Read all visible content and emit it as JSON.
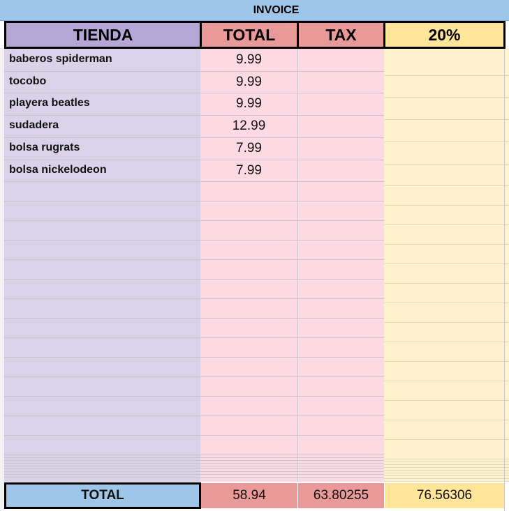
{
  "table": {
    "title": "INVOICE",
    "headers": [
      "TIENDA",
      "TOTAL",
      "TAX",
      "20%"
    ],
    "rows": [
      [
        "baberos spiderman",
        "9.99"
      ],
      [
        "tocobo",
        "9.99"
      ],
      [
        "playera beatles",
        "9.99"
      ],
      [
        "sudadera",
        "12.99"
      ],
      [
        "bolsa rugrats",
        "7.99"
      ],
      [
        "bolsa nickelodeon",
        "7.99"
      ]
    ],
    "footer": [
      "TOTAL",
      "58.94",
      "63.80255",
      "76.56306"
    ]
  }
}
